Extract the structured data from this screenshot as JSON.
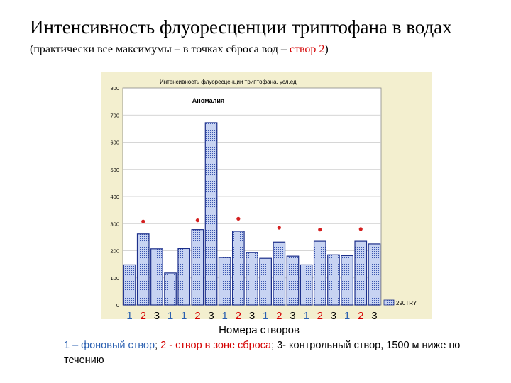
{
  "header": {
    "title": "Интенсивность флуоресценции триптофана в водах",
    "subtitle_pre": "(практически все максимумы – в точках сброса вод – ",
    "subtitle_red": "створ 2",
    "subtitle_post": ")"
  },
  "x_axis_title": "Номера створов",
  "footnote": {
    "part1": "1 – фоновый створ",
    "sep1": "; ",
    "part2": "2  - створ в зоне сброса",
    "part3": ";  3- контрольный створ, 1500 м ниже по течению"
  },
  "colors": {
    "plot_bg": "#f3efcf",
    "bar_fill": "#8ea4de",
    "bar_edge": "#1c2f8a",
    "point": "#d42020",
    "label_1": "#2a5fb0",
    "label_2": "#d40000",
    "label_3": "#000000"
  },
  "chart_data": {
    "type": "bar",
    "title": "Интенсивность флуоресценции триптофана, усл.ед",
    "annotation": "Аномалия",
    "ylim": [
      0,
      800
    ],
    "yticks": [
      "0",
      "100",
      "200",
      "300",
      "400",
      "500",
      "600",
      "700",
      "800"
    ],
    "categories": [
      "1",
      "2",
      "3",
      "1",
      "1",
      "2",
      "3",
      "1",
      "2",
      "3",
      "1",
      "2",
      "3",
      "1",
      "2",
      "3",
      "1",
      "2",
      "3"
    ],
    "series": [
      {
        "name": "290TRY",
        "values": [
          148,
          262,
          207,
          118,
          208,
          278,
          672,
          175,
          272,
          193,
          172,
          232,
          180,
          148,
          235,
          185,
          182,
          235,
          225
        ]
      }
    ],
    "red_points": [
      {
        "category_index": 1,
        "value": 308
      },
      {
        "category_index": 5,
        "value": 312
      },
      {
        "category_index": 8,
        "value": 318
      },
      {
        "category_index": 11,
        "value": 285
      },
      {
        "category_index": 14,
        "value": 278
      },
      {
        "category_index": 17,
        "value": 280
      }
    ],
    "legend": "bottom-right",
    "grid": "horizontal"
  }
}
